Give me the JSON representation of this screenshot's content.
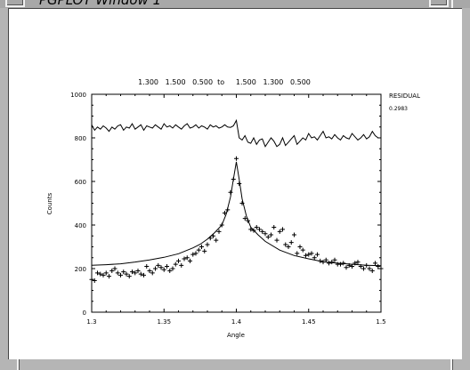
{
  "window": {
    "title": "PGPLOT Window 1"
  },
  "plot": {
    "header": "1.300   1.500   0.500  to     1.500   1.300   0.500",
    "residual_label": "RESIDUAL",
    "residual_value": "0.2983"
  },
  "chart_data": {
    "type": "scatter",
    "xlabel": "Angle",
    "ylabel": "Counts",
    "xlim": [
      1.3,
      1.5
    ],
    "ylim": [
      0,
      1000
    ],
    "x_ticks": [
      "1.3",
      "1.35",
      "1.4",
      "1.45",
      "1.5"
    ],
    "y_ticks": [
      "0",
      "200",
      "400",
      "600",
      "800",
      "1000"
    ],
    "grid": false,
    "series": [
      {
        "kind": "points",
        "marker": "plus",
        "x": [
          1.3,
          1.302,
          1.304,
          1.306,
          1.308,
          1.31,
          1.312,
          1.314,
          1.316,
          1.318,
          1.32,
          1.322,
          1.324,
          1.326,
          1.328,
          1.33,
          1.332,
          1.334,
          1.336,
          1.338,
          1.34,
          1.342,
          1.344,
          1.346,
          1.348,
          1.35,
          1.352,
          1.354,
          1.356,
          1.358,
          1.36,
          1.362,
          1.364,
          1.366,
          1.368,
          1.37,
          1.372,
          1.374,
          1.376,
          1.378,
          1.38,
          1.382,
          1.384,
          1.386,
          1.388,
          1.39,
          1.392,
          1.394,
          1.396,
          1.398,
          1.4,
          1.402,
          1.404,
          1.406,
          1.408,
          1.41,
          1.412,
          1.414,
          1.416,
          1.418,
          1.42,
          1.422,
          1.424,
          1.426,
          1.428,
          1.43,
          1.432,
          1.434,
          1.436,
          1.438,
          1.44,
          1.442,
          1.444,
          1.446,
          1.448,
          1.45,
          1.452,
          1.454,
          1.456,
          1.458,
          1.46,
          1.462,
          1.464,
          1.466,
          1.468,
          1.47,
          1.472,
          1.474,
          1.476,
          1.478,
          1.48,
          1.482,
          1.484,
          1.486,
          1.488,
          1.49,
          1.492,
          1.494,
          1.496,
          1.498,
          1.5
        ],
        "y": [
          150,
          145,
          180,
          175,
          170,
          180,
          165,
          190,
          200,
          180,
          170,
          185,
          175,
          165,
          185,
          180,
          190,
          175,
          170,
          210,
          190,
          180,
          200,
          215,
          205,
          195,
          210,
          190,
          200,
          220,
          235,
          215,
          245,
          250,
          235,
          265,
          270,
          285,
          300,
          280,
          310,
          340,
          350,
          330,
          370,
          400,
          455,
          470,
          550,
          610,
          705,
          590,
          500,
          430,
          420,
          380,
          375,
          390,
          380,
          370,
          360,
          345,
          355,
          390,
          330,
          370,
          380,
          310,
          300,
          320,
          355,
          270,
          300,
          285,
          260,
          265,
          270,
          250,
          265,
          235,
          230,
          240,
          225,
          230,
          240,
          220,
          220,
          225,
          205,
          215,
          210,
          225,
          230,
          210,
          200,
          215,
          200,
          190,
          225,
          210,
          200
        ]
      },
      {
        "kind": "fit-line",
        "x": [
          1.3,
          1.31,
          1.32,
          1.33,
          1.34,
          1.35,
          1.36,
          1.37,
          1.375,
          1.38,
          1.385,
          1.39,
          1.393,
          1.396,
          1.398,
          1.4,
          1.402,
          1.404,
          1.407,
          1.41,
          1.415,
          1.42,
          1.43,
          1.44,
          1.45,
          1.46,
          1.47,
          1.48,
          1.49,
          1.5
        ],
        "y": [
          215,
          218,
          222,
          230,
          240,
          252,
          268,
          295,
          312,
          335,
          365,
          400,
          450,
          530,
          610,
          690,
          610,
          520,
          440,
          390,
          355,
          325,
          285,
          260,
          245,
          232,
          225,
          220,
          215,
          213
        ]
      },
      {
        "kind": "residual-line",
        "x": [
          1.3,
          1.302,
          1.304,
          1.306,
          1.308,
          1.31,
          1.312,
          1.314,
          1.316,
          1.318,
          1.32,
          1.322,
          1.324,
          1.326,
          1.328,
          1.33,
          1.332,
          1.334,
          1.336,
          1.338,
          1.34,
          1.342,
          1.344,
          1.346,
          1.348,
          1.35,
          1.352,
          1.354,
          1.356,
          1.358,
          1.36,
          1.362,
          1.364,
          1.366,
          1.368,
          1.37,
          1.372,
          1.374,
          1.376,
          1.378,
          1.38,
          1.382,
          1.384,
          1.386,
          1.388,
          1.39,
          1.392,
          1.394,
          1.396,
          1.398,
          1.4,
          1.402,
          1.404,
          1.406,
          1.408,
          1.41,
          1.412,
          1.414,
          1.416,
          1.418,
          1.42,
          1.422,
          1.424,
          1.426,
          1.428,
          1.43,
          1.432,
          1.434,
          1.436,
          1.438,
          1.44,
          1.442,
          1.444,
          1.446,
          1.448,
          1.45,
          1.452,
          1.454,
          1.456,
          1.458,
          1.46,
          1.462,
          1.464,
          1.466,
          1.468,
          1.47,
          1.472,
          1.474,
          1.476,
          1.478,
          1.48,
          1.482,
          1.484,
          1.486,
          1.488,
          1.49,
          1.492,
          1.494,
          1.496,
          1.498,
          1.5
        ],
        "y": [
          860,
          835,
          850,
          840,
          855,
          845,
          830,
          850,
          840,
          855,
          860,
          835,
          850,
          845,
          865,
          840,
          850,
          860,
          835,
          855,
          850,
          845,
          860,
          850,
          840,
          865,
          850,
          855,
          845,
          860,
          850,
          840,
          855,
          865,
          845,
          850,
          860,
          845,
          855,
          850,
          840,
          860,
          850,
          855,
          845,
          850,
          860,
          850,
          848,
          855,
          880,
          800,
          790,
          810,
          780,
          775,
          800,
          770,
          790,
          795,
          760,
          780,
          800,
          785,
          760,
          770,
          800,
          765,
          780,
          795,
          810,
          770,
          785,
          800,
          790,
          820,
          800,
          805,
          790,
          810,
          830,
          800,
          805,
          795,
          815,
          800,
          790,
          810,
          800,
          795,
          820,
          805,
          790,
          800,
          815,
          795,
          805,
          830,
          810,
          800,
          800
        ]
      }
    ]
  }
}
